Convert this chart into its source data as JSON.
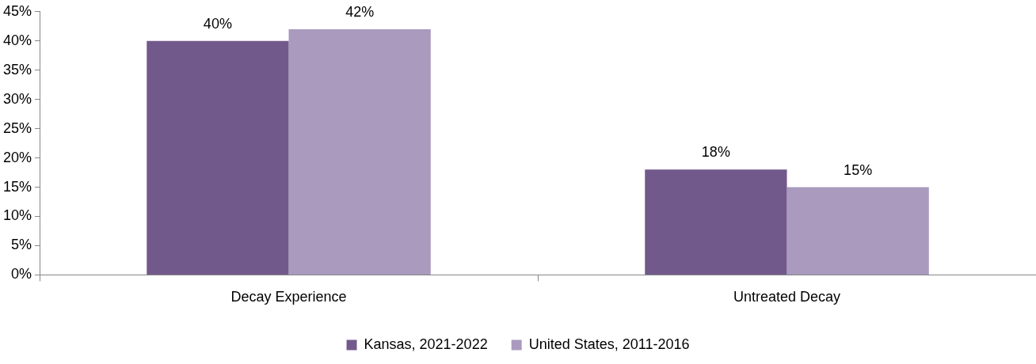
{
  "chart_data": {
    "type": "bar",
    "categories": [
      "Decay Experience",
      "Untreated Decay"
    ],
    "series": [
      {
        "name": "Kansas, 2021-2022",
        "color": "#72598c",
        "values": [
          40,
          18
        ],
        "value_labels": [
          "40%",
          "18%"
        ]
      },
      {
        "name": "United States, 2011-2016",
        "color": "#a99abe",
        "values": [
          42,
          15
        ],
        "value_labels": [
          "42%",
          "15%"
        ]
      }
    ],
    "ylim": [
      0,
      45
    ],
    "yticks": [
      {
        "value": 0,
        "label": "0%"
      },
      {
        "value": 5,
        "label": "5%"
      },
      {
        "value": 10,
        "label": "10%"
      },
      {
        "value": 15,
        "label": "15%"
      },
      {
        "value": 20,
        "label": "20%"
      },
      {
        "value": 25,
        "label": "25%"
      },
      {
        "value": 30,
        "label": "30%"
      },
      {
        "value": 35,
        "label": "35%"
      },
      {
        "value": 40,
        "label": "40%"
      },
      {
        "value": 45,
        "label": "45%"
      }
    ],
    "grid": false,
    "legend": "bottom"
  }
}
